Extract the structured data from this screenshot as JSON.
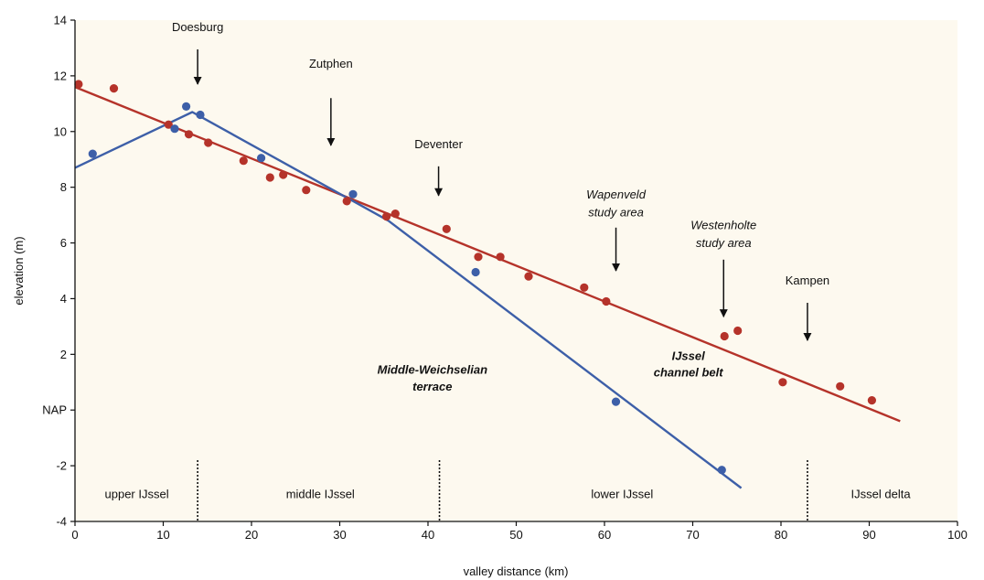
{
  "chart_data": {
    "type": "scatter",
    "xlabel": "valley distance (km)",
    "ylabel": "elevation (m)",
    "xlim": [
      0,
      100
    ],
    "ylim": [
      -4,
      14
    ],
    "x_ticks": [
      "0",
      "10",
      "20",
      "30",
      "40",
      "50",
      "60",
      "70",
      "80",
      "90",
      "100"
    ],
    "y_ticks": [
      "-4",
      "-2",
      "NAP",
      "2",
      "4",
      "6",
      "8",
      "10",
      "12",
      "14"
    ],
    "grid": false,
    "colors": {
      "red_series": "#b5332a",
      "blue_series": "#3d5fa8",
      "background": "#fdf9ef"
    },
    "series": [
      {
        "name": "IJssel channel belt",
        "color": "#b5332a",
        "points": [
          [
            0.4,
            11.7
          ],
          [
            4.4,
            11.55
          ],
          [
            10.6,
            10.25
          ],
          [
            12.9,
            9.9
          ],
          [
            15.1,
            9.6
          ],
          [
            19.1,
            8.95
          ],
          [
            22.1,
            8.35
          ],
          [
            23.6,
            8.45
          ],
          [
            26.2,
            7.9
          ],
          [
            30.8,
            7.5
          ],
          [
            35.3,
            6.95
          ],
          [
            36.3,
            7.05
          ],
          [
            42.1,
            6.5
          ],
          [
            45.7,
            5.5
          ],
          [
            48.2,
            5.5
          ],
          [
            51.4,
            4.8
          ],
          [
            57.7,
            4.4
          ],
          [
            60.2,
            3.9
          ],
          [
            73.6,
            2.65
          ],
          [
            75.1,
            2.85
          ],
          [
            80.2,
            1.0
          ],
          [
            86.7,
            0.85
          ],
          [
            90.3,
            0.35
          ]
        ],
        "trend": [
          [
            0,
            11.6
          ],
          [
            93.5,
            -0.4
          ]
        ]
      },
      {
        "name": "Middle-Weichselian terrace",
        "color": "#3d5fa8",
        "points": [
          [
            2.0,
            9.2
          ],
          [
            11.3,
            10.1
          ],
          [
            12.6,
            10.9
          ],
          [
            14.2,
            10.6
          ],
          [
            21.1,
            9.05
          ],
          [
            31.5,
            7.75
          ],
          [
            45.4,
            4.95
          ],
          [
            61.3,
            0.3
          ],
          [
            73.3,
            -2.15
          ]
        ],
        "trend": [
          [
            0,
            8.7
          ],
          [
            13.3,
            10.7
          ],
          [
            35.5,
            6.8
          ],
          [
            75.5,
            -2.8
          ]
        ]
      }
    ],
    "places": [
      {
        "label": "Doesburg",
        "x": 13.9,
        "label_y": 13.6,
        "arrow_from": 12.95,
        "arrow_to": 11.7
      },
      {
        "label": "Zutphen",
        "x": 29.0,
        "label_y": 12.3,
        "arrow_from": 11.2,
        "arrow_to": 9.5
      },
      {
        "label": "Deventer",
        "x": 41.2,
        "label_y": 9.4,
        "arrow_from": 8.75,
        "arrow_to": 7.7
      },
      {
        "label": "Kampen",
        "x": 83.0,
        "label_y": 4.5,
        "arrow_from": 3.85,
        "arrow_to": 2.5
      }
    ],
    "study_areas": [
      {
        "line1": "Wapenveld",
        "line2": "study area",
        "x": 61.3,
        "label_y1": 7.6,
        "label_y2": 6.95,
        "arrow_from": 6.55,
        "arrow_to": 5.0
      },
      {
        "line1": "Westenholte",
        "line2": "study area",
        "x": 73.5,
        "label_y1": 6.5,
        "label_y2": 5.85,
        "arrow_from": 5.4,
        "arrow_to": 3.35
      }
    ],
    "series_labels": [
      {
        "line1": "Middle-Weichselian",
        "line2": "terrace",
        "x": 40.5,
        "y1": 1.3,
        "y2": 0.7
      },
      {
        "line1": "IJssel",
        "line2": "channel belt",
        "x": 69.5,
        "y1": 1.8,
        "y2": 1.2
      }
    ],
    "reaches": {
      "labels": [
        {
          "text": "upper IJssel",
          "x": 7.0
        },
        {
          "text": "middle IJssel",
          "x": 27.8
        },
        {
          "text": "lower IJssel",
          "x": 62.0
        },
        {
          "text": "IJssel delta",
          "x": 91.3
        }
      ],
      "label_y": -3.0,
      "boundaries": [
        13.9,
        41.3,
        83.0
      ],
      "boundary_from": -1.8,
      "boundary_to": -4.0
    }
  }
}
